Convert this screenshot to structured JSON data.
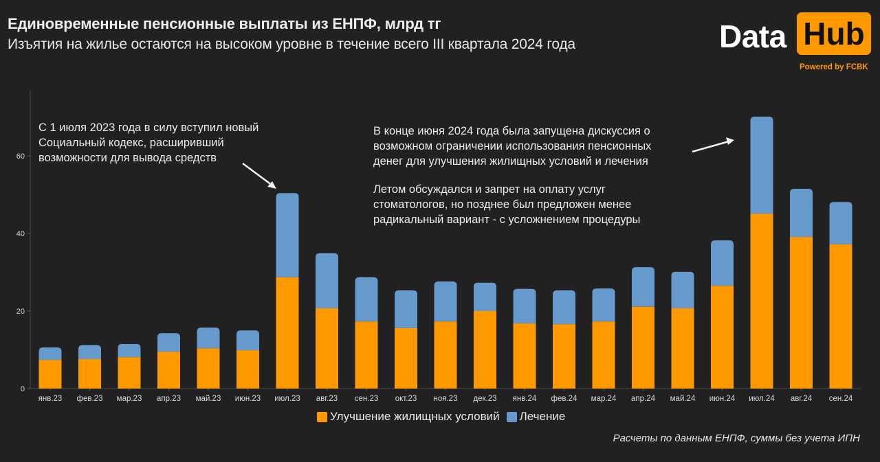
{
  "header": {
    "title": "Единовременные пенсионные выплаты из ЕНПФ, млрд тг",
    "subtitle": "Изъятия на жилье остаются на высоком уровне в течение всего III квартала 2024 года"
  },
  "logo": {
    "part1": "Data",
    "part2": "Hub",
    "powered_by": "Powered by FCBK",
    "accent_color": "#ff9900"
  },
  "annotations": {
    "july2023": "С 1 июля 2023 года в силу вступил новый\nСоциальный кодекс, расширивший\nвозможности для вывода средств",
    "june2024_p1": "В конце июня 2024 года была запущена дискуссия о\nвозможном ограничении использования пенсионных\nденег для улучшения жилищных условий и лечения",
    "june2024_p2": "Летом обсуждался и запрет на оплату услуг\nстоматологов, но позднее был предложен менее\nрадикальный вариант - с усложнением процедуры"
  },
  "footnote": "Расчеты по данным ЕНПФ, суммы без учета ИПН",
  "chart_data": {
    "type": "bar",
    "stacked": true,
    "title": "Единовременные пенсионные выплаты из ЕНПФ, млрд тг",
    "xlabel": "",
    "ylabel": "",
    "ylim": [
      0,
      77
    ],
    "yticks": [
      0,
      20,
      40,
      60
    ],
    "grid": false,
    "legend_position": "bottom",
    "categories": [
      "янв.23",
      "фев.23",
      "мар.23",
      "апр.23",
      "май.23",
      "июн.23",
      "июл.23",
      "авг.23",
      "сен.23",
      "окт.23",
      "ноя.23",
      "дек.23",
      "янв.24",
      "фев.24",
      "мар.24",
      "апр.24",
      "май.24",
      "июн.24",
      "июл.24",
      "авг.24",
      "сен.24"
    ],
    "series": [
      {
        "name": "Улучшение жилищных условий",
        "color": "#ff9900",
        "values": [
          7.4,
          7.6,
          8.1,
          9.5,
          10.4,
          9.9,
          28.7,
          20.7,
          17.3,
          15.6,
          17.3,
          20.0,
          16.8,
          16.6,
          17.3,
          21.1,
          20.7,
          26.5,
          45.1,
          39.1,
          37.2
        ]
      },
      {
        "name": "Лечение",
        "color": "#6699cc",
        "values": [
          3.2,
          3.6,
          3.4,
          4.8,
          5.3,
          5.1,
          21.7,
          14.2,
          11.4,
          9.7,
          10.3,
          7.3,
          8.9,
          8.7,
          8.5,
          10.2,
          9.4,
          11.7,
          25.0,
          12.4,
          10.9
        ]
      }
    ]
  }
}
